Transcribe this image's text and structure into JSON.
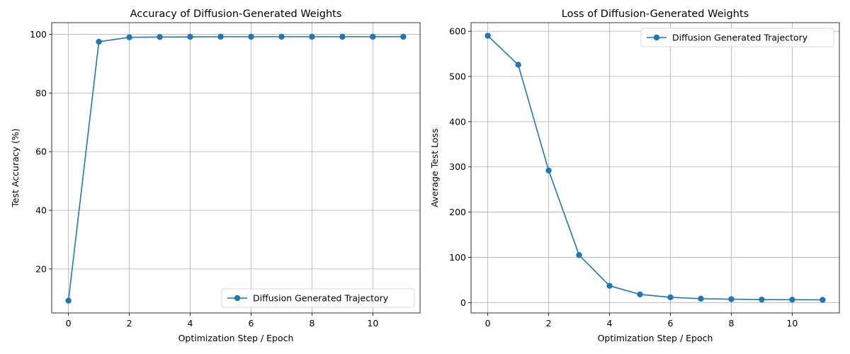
{
  "chart_data": [
    {
      "type": "line",
      "title": "Accuracy of Diffusion-Generated Weights",
      "xlabel": "Optimization Step / Epoch",
      "ylabel": "Test Accuracy (%)",
      "x": [
        0,
        1,
        2,
        3,
        4,
        5,
        6,
        7,
        8,
        9,
        10,
        11
      ],
      "xlim": [
        -0.55,
        11.55
      ],
      "ylim": [
        5,
        104
      ],
      "xticks": [
        0,
        2,
        4,
        6,
        8,
        10
      ],
      "yticks": [
        20,
        40,
        60,
        80,
        100
      ],
      "grid": true,
      "legend_position": "lower right",
      "series": [
        {
          "name": "Diffusion Generated Trajectory",
          "color": "#1f77b4",
          "marker": "circle",
          "values": [
            9.2,
            97.5,
            99.0,
            99.1,
            99.15,
            99.2,
            99.2,
            99.2,
            99.2,
            99.2,
            99.2,
            99.2
          ]
        }
      ]
    },
    {
      "type": "line",
      "title": "Loss of Diffusion-Generated Weights",
      "xlabel": "Optimization Step / Epoch",
      "ylabel": "Average Test Loss",
      "x": [
        0,
        1,
        2,
        3,
        4,
        5,
        6,
        7,
        8,
        9,
        10,
        11
      ],
      "xlim": [
        -0.55,
        11.55
      ],
      "ylim": [
        -23,
        619
      ],
      "xticks": [
        0,
        2,
        4,
        6,
        8,
        10
      ],
      "yticks": [
        0,
        100,
        200,
        300,
        400,
        500,
        600
      ],
      "grid": true,
      "legend_position": "upper right",
      "series": [
        {
          "name": "Diffusion Generated Trajectory",
          "color": "#1f77b4",
          "marker": "circle",
          "values": [
            590,
            526,
            292,
            105,
            37,
            18,
            11.5,
            8.5,
            7.5,
            6.5,
            6.3,
            6.0
          ]
        }
      ]
    }
  ]
}
